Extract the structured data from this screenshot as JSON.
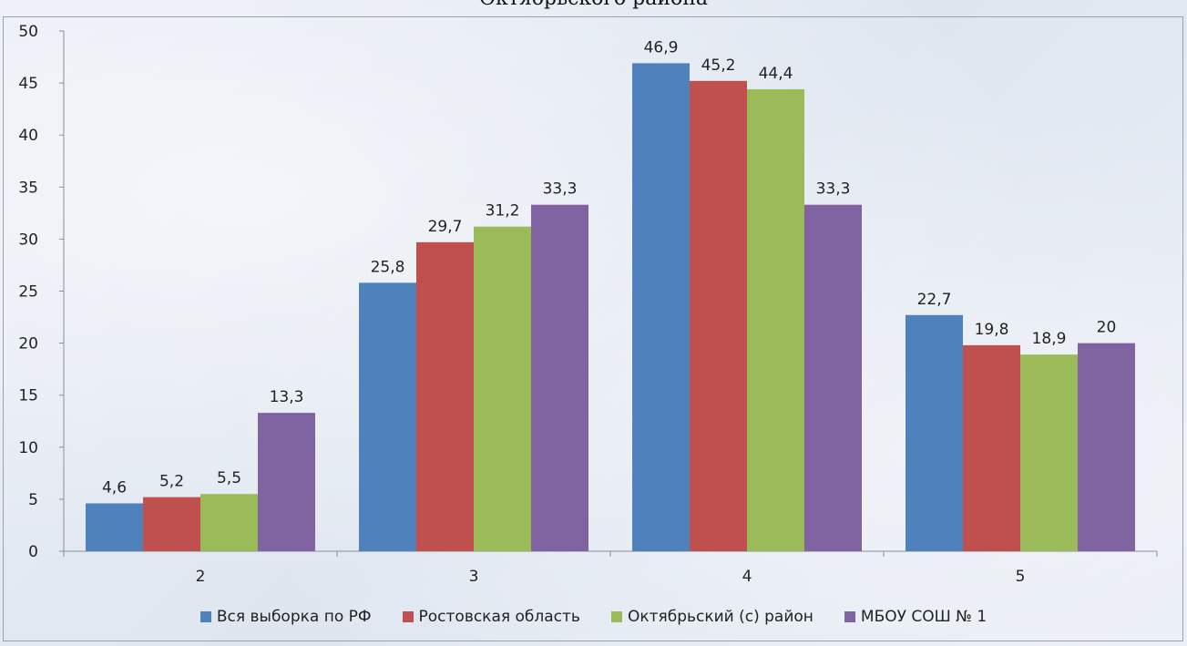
{
  "chart_data": {
    "type": "bar",
    "title": "Октябрьского района",
    "categories": [
      "2",
      "3",
      "4",
      "5"
    ],
    "ylim": [
      0,
      50
    ],
    "yticks": [
      0,
      5,
      10,
      15,
      20,
      25,
      30,
      35,
      40,
      45,
      50
    ],
    "grid": false,
    "legend_position": "bottom",
    "series": [
      {
        "name": "Вся выборка по РФ",
        "color": "#4f81bd",
        "values": [
          4.6,
          25.8,
          46.9,
          22.7
        ],
        "labels": [
          "4,6",
          "25,8",
          "46,9",
          "22,7"
        ]
      },
      {
        "name": "Ростовская область",
        "color": "#c0504d",
        "values": [
          5.2,
          29.7,
          45.2,
          19.8
        ],
        "labels": [
          "5,2",
          "29,7",
          "45,2",
          "19,8"
        ]
      },
      {
        "name": "Октябрьский (с) район",
        "color": "#9bbb59",
        "values": [
          5.5,
          31.2,
          44.4,
          18.9
        ],
        "labels": [
          "5,5",
          "31,2",
          "44,4",
          "18,9"
        ]
      },
      {
        "name": "МБОУ СОШ № 1",
        "color": "#8064a2",
        "values": [
          13.3,
          33.3,
          33.3,
          20
        ],
        "labels": [
          "13,3",
          "33,3",
          "33,3",
          "20"
        ]
      }
    ]
  }
}
